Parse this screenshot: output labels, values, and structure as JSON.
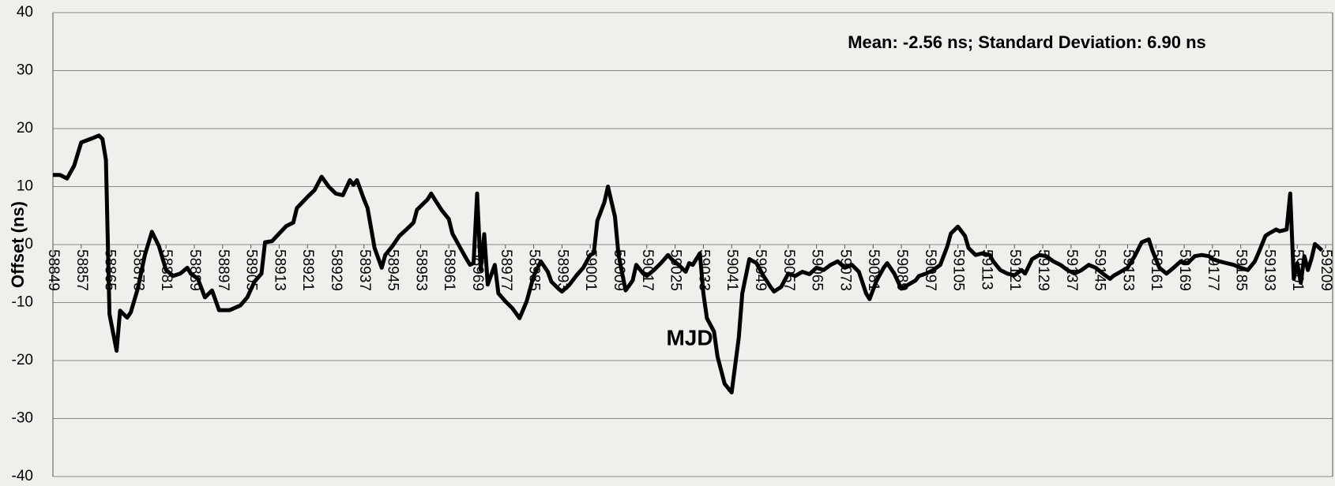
{
  "chart_data": {
    "type": "line",
    "annotation": "Mean: -2.56 ns; Standard Deviation: 6.90 ns",
    "xlabel": "MJD",
    "ylabel": "Offset (ns)",
    "color": "#000000",
    "label_color": "#7030a0",
    "grid": true,
    "xlim": [
      58849,
      59211
    ],
    "ylim": [
      -40,
      40
    ],
    "yticks": [
      40,
      30,
      20,
      10,
      0,
      -10,
      -20,
      -30,
      -40
    ],
    "xticks": [
      58849,
      58857,
      58865,
      58873,
      58881,
      58889,
      58897,
      58905,
      58913,
      58921,
      58929,
      58937,
      58945,
      58953,
      58961,
      58969,
      58977,
      58985,
      58993,
      59001,
      59009,
      59017,
      59025,
      59033,
      59041,
      59049,
      59057,
      59065,
      59073,
      59081,
      59089,
      59097,
      59105,
      59113,
      59121,
      59129,
      59137,
      59145,
      59153,
      59161,
      59169,
      59177,
      59185,
      59193,
      59201,
      59209
    ],
    "x": [
      58849,
      58851,
      58853,
      58855,
      58857,
      58860,
      58862,
      58863,
      58864,
      58865,
      58867,
      58868,
      58870,
      58871,
      58873,
      58875,
      58877,
      58879,
      58881,
      58883,
      58885,
      58887,
      58888,
      58890,
      58892,
      58894,
      58896,
      58899,
      58902,
      58904,
      58906,
      58908,
      58909,
      58911,
      58913,
      58915,
      58917,
      58918,
      58921,
      58923,
      58925,
      58927,
      58929,
      58931,
      58933,
      58934,
      58935,
      58937,
      58938,
      58940,
      58942,
      58943,
      58945,
      58947,
      58949,
      58951,
      58952,
      58955,
      58956,
      58957,
      58959,
      58961,
      58962,
      58964,
      58966,
      58967,
      58968,
      58969,
      58970,
      58971,
      58972,
      58974,
      58975,
      58977,
      58979,
      58981,
      58983,
      58985,
      58987,
      58989,
      58990,
      58992,
      58993,
      58995,
      58997,
      58999,
      59001,
      59002,
      59003,
      59005,
      59006,
      59008,
      59009,
      59011,
      59013,
      59014,
      59016,
      59017,
      59019,
      59021,
      59023,
      59024,
      59026,
      59028,
      59029,
      59030,
      59032,
      59033,
      59034,
      59036,
      59037,
      59039,
      59041,
      59043,
      59044,
      59046,
      59048,
      59050,
      59052,
      59053,
      59055,
      59057,
      59059,
      59061,
      59063,
      59065,
      59067,
      59069,
      59071,
      59073,
      59075,
      59077,
      59079,
      59080,
      59082,
      59084,
      59085,
      59087,
      59089,
      59091,
      59093,
      59094,
      59096,
      59098,
      59100,
      59102,
      59103,
      59105,
      59107,
      59108,
      59110,
      59112,
      59114,
      59115,
      59117,
      59119,
      59121,
      59123,
      59124,
      59126,
      59128,
      59130,
      59132,
      59134,
      59136,
      59138,
      59140,
      59142,
      59144,
      59146,
      59148,
      59149,
      59151,
      59153,
      59155,
      59157,
      59159,
      59160,
      59162,
      59164,
      59166,
      59168,
      59170,
      59172,
      59174,
      59176,
      59177,
      59179,
      59181,
      59183,
      59185,
      59187,
      59189,
      59190,
      59192,
      59193,
      59195,
      59196,
      59198,
      59199,
      59200,
      59201,
      59202,
      59203,
      59204,
      59205,
      59206,
      59208
    ],
    "values": [
      12,
      12,
      11.4,
      13.6,
      17.6,
      18.3,
      18.8,
      18.2,
      14.6,
      -12,
      -18.3,
      -11.4,
      -12.6,
      -11.7,
      -7.6,
      -1.8,
      2.2,
      -0.3,
      -4.4,
      -5.4,
      -5,
      -4,
      -5,
      -5.9,
      -9.1,
      -7.9,
      -11.3,
      -11.3,
      -10.5,
      -9.1,
      -6.4,
      -5,
      0.4,
      0.6,
      1.9,
      3.2,
      3.8,
      6.3,
      8.2,
      9.4,
      11.7,
      10,
      8.8,
      8.5,
      11.1,
      10.3,
      11.1,
      7.8,
      6.3,
      -0.6,
      -4,
      -1.8,
      -0.3,
      1.5,
      2.6,
      3.8,
      6,
      7.8,
      8.8,
      7.8,
      5.9,
      4.4,
      1.9,
      -0.3,
      -2.5,
      -3.5,
      -3.2,
      8.8,
      -4.4,
      1.8,
      -6.9,
      -3.5,
      -8.4,
      -9.8,
      -11,
      -12.7,
      -9.8,
      -5.4,
      -2.9,
      -4.7,
      -6.4,
      -7.6,
      -8.1,
      -7,
      -5.4,
      -4,
      -1.8,
      -1.5,
      4.1,
      7.3,
      10,
      4.8,
      -1.8,
      -7.9,
      -6.2,
      -3.5,
      -5,
      -5.4,
      -4.4,
      -3.2,
      -1.8,
      -2.5,
      -3.5,
      -4.7,
      -3.2,
      -3.5,
      -1.5,
      -8.4,
      -12.7,
      -15,
      -19.3,
      -24,
      -25.5,
      -16.1,
      -8.4,
      -2.5,
      -3.2,
      -5.4,
      -7.3,
      -8.1,
      -7.3,
      -5,
      -5.4,
      -4.7,
      -5.1,
      -4,
      -4.4,
      -3.5,
      -2.9,
      -4,
      -3.5,
      -4.7,
      -8.4,
      -9.4,
      -6.2,
      -4,
      -3.2,
      -5,
      -7.6,
      -6.9,
      -6.2,
      -5.4,
      -5,
      -4.4,
      -3.5,
      -0.3,
      1.9,
      3.1,
      1.5,
      -0.6,
      -1.8,
      -1.5,
      -1.8,
      -2.9,
      -4.4,
      -5,
      -5.3,
      -4.4,
      -5,
      -2.5,
      -1.8,
      -2,
      -2.9,
      -3.5,
      -4.4,
      -5,
      -4.4,
      -3.5,
      -4,
      -5,
      -5.9,
      -5.4,
      -4.7,
      -4,
      -2,
      0.4,
      0.9,
      -1,
      -4,
      -5,
      -4,
      -2.9,
      -3.2,
      -2,
      -1.8,
      -2,
      -2.5,
      -2.9,
      -3.2,
      -3.5,
      -4,
      -4.4,
      -2.9,
      -1.5,
      1.5,
      1.9,
      2.6,
      2.3,
      2.6,
      8.8,
      -5.9,
      -3.2,
      -6.6,
      -2,
      -4.4,
      -2.5,
      0.1,
      -1
    ]
  }
}
